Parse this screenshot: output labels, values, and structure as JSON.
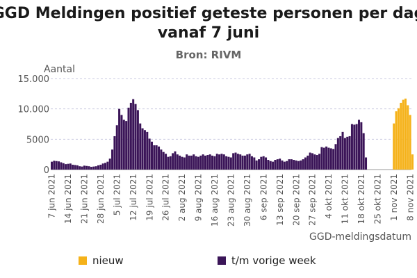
{
  "title_line1": "GGD Meldingen positief geteste personen per dag",
  "title_line2": "vanaf 7 juni",
  "subtitle": "Bron: RIVM",
  "colors": {
    "tm_vorige_week": "#3b1558",
    "nieuw": "#f5b21a",
    "grid": "#c9c9e0",
    "axis_text": "#555555"
  },
  "legend": [
    {
      "label": "nieuw",
      "color": "#f5b21a"
    },
    {
      "label": "t/m vorige week",
      "color": "#3b1558"
    }
  ],
  "chart_data": {
    "type": "bar",
    "ylabel": "Aantal",
    "xlabel": "GGD-meldingsdatum",
    "ylim": [
      0,
      15000
    ],
    "yticks": [
      0,
      5000,
      10000,
      15000
    ],
    "ytick_labels": [
      "0",
      "5000",
      "10.000",
      "15.000"
    ],
    "xtick_labels": [
      "7 jun 2021",
      "14 jun 2021",
      "21 jun 2021",
      "28 jun 2021",
      "5 jul 2021",
      "12 jul 2021",
      "19 jul 2021",
      "26 jul 2021",
      "2 aug 2021",
      "9 aug 2021",
      "16 aug 2021",
      "23 aug 2021",
      "30 aug 2021",
      "6 sep 2021",
      "13 sep 2021",
      "20 sep 2021",
      "27 sep 2021",
      "4 okt 2021",
      "11 okt 2021",
      "18 okt 2021",
      "25 okt 2021",
      "1 nov 2021",
      "8 nov 2021"
    ],
    "x_start": "2021-06-07",
    "x_end": "2021-11-09",
    "grid": true,
    "series": [
      {
        "name": "t/m vorige week",
        "values": [
          1300,
          1450,
          1400,
          1350,
          1200,
          1050,
          900,
          950,
          1000,
          800,
          750,
          700,
          550,
          500,
          650,
          600,
          550,
          450,
          500,
          550,
          700,
          800,
          1000,
          1100,
          1300,
          1800,
          3300,
          5500,
          7300,
          10000,
          9000,
          8200,
          8000,
          10200,
          11000,
          11600,
          10800,
          9800,
          7600,
          6800,
          6500,
          6200,
          5100,
          4600,
          4000,
          4000,
          3800,
          3300,
          2900,
          2600,
          2100,
          2200,
          2700,
          3000,
          2500,
          2300,
          2100,
          2000,
          2500,
          2300,
          2300,
          2500,
          2200,
          2100,
          2300,
          2500,
          2300,
          2400,
          2500,
          2300,
          2200,
          2600,
          2500,
          2600,
          2500,
          2200,
          2100,
          2000,
          2700,
          2800,
          2600,
          2500,
          2300,
          2300,
          2500,
          2600,
          2200,
          2000,
          1500,
          1700,
          2100,
          2200,
          2000,
          1600,
          1400,
          1300,
          1600,
          1700,
          1800,
          1500,
          1300,
          1400,
          1700,
          1700,
          1600,
          1500,
          1400,
          1500,
          1700,
          2000,
          2300,
          2800,
          2700,
          2500,
          2400,
          2600,
          3700,
          3600,
          3800,
          3600,
          3500,
          3400,
          4200,
          5200,
          5500,
          6200,
          5200,
          5400,
          5500,
          7500,
          7400,
          7500,
          8200,
          7800,
          6000,
          2000
        ],
        "start": "2021-06-07"
      },
      {
        "name": "nieuw",
        "values": [
          7600,
          9600,
          10100,
          11000,
          11500,
          11700,
          10600,
          9000,
          2500
        ],
        "start": "2021-11-01"
      }
    ]
  }
}
